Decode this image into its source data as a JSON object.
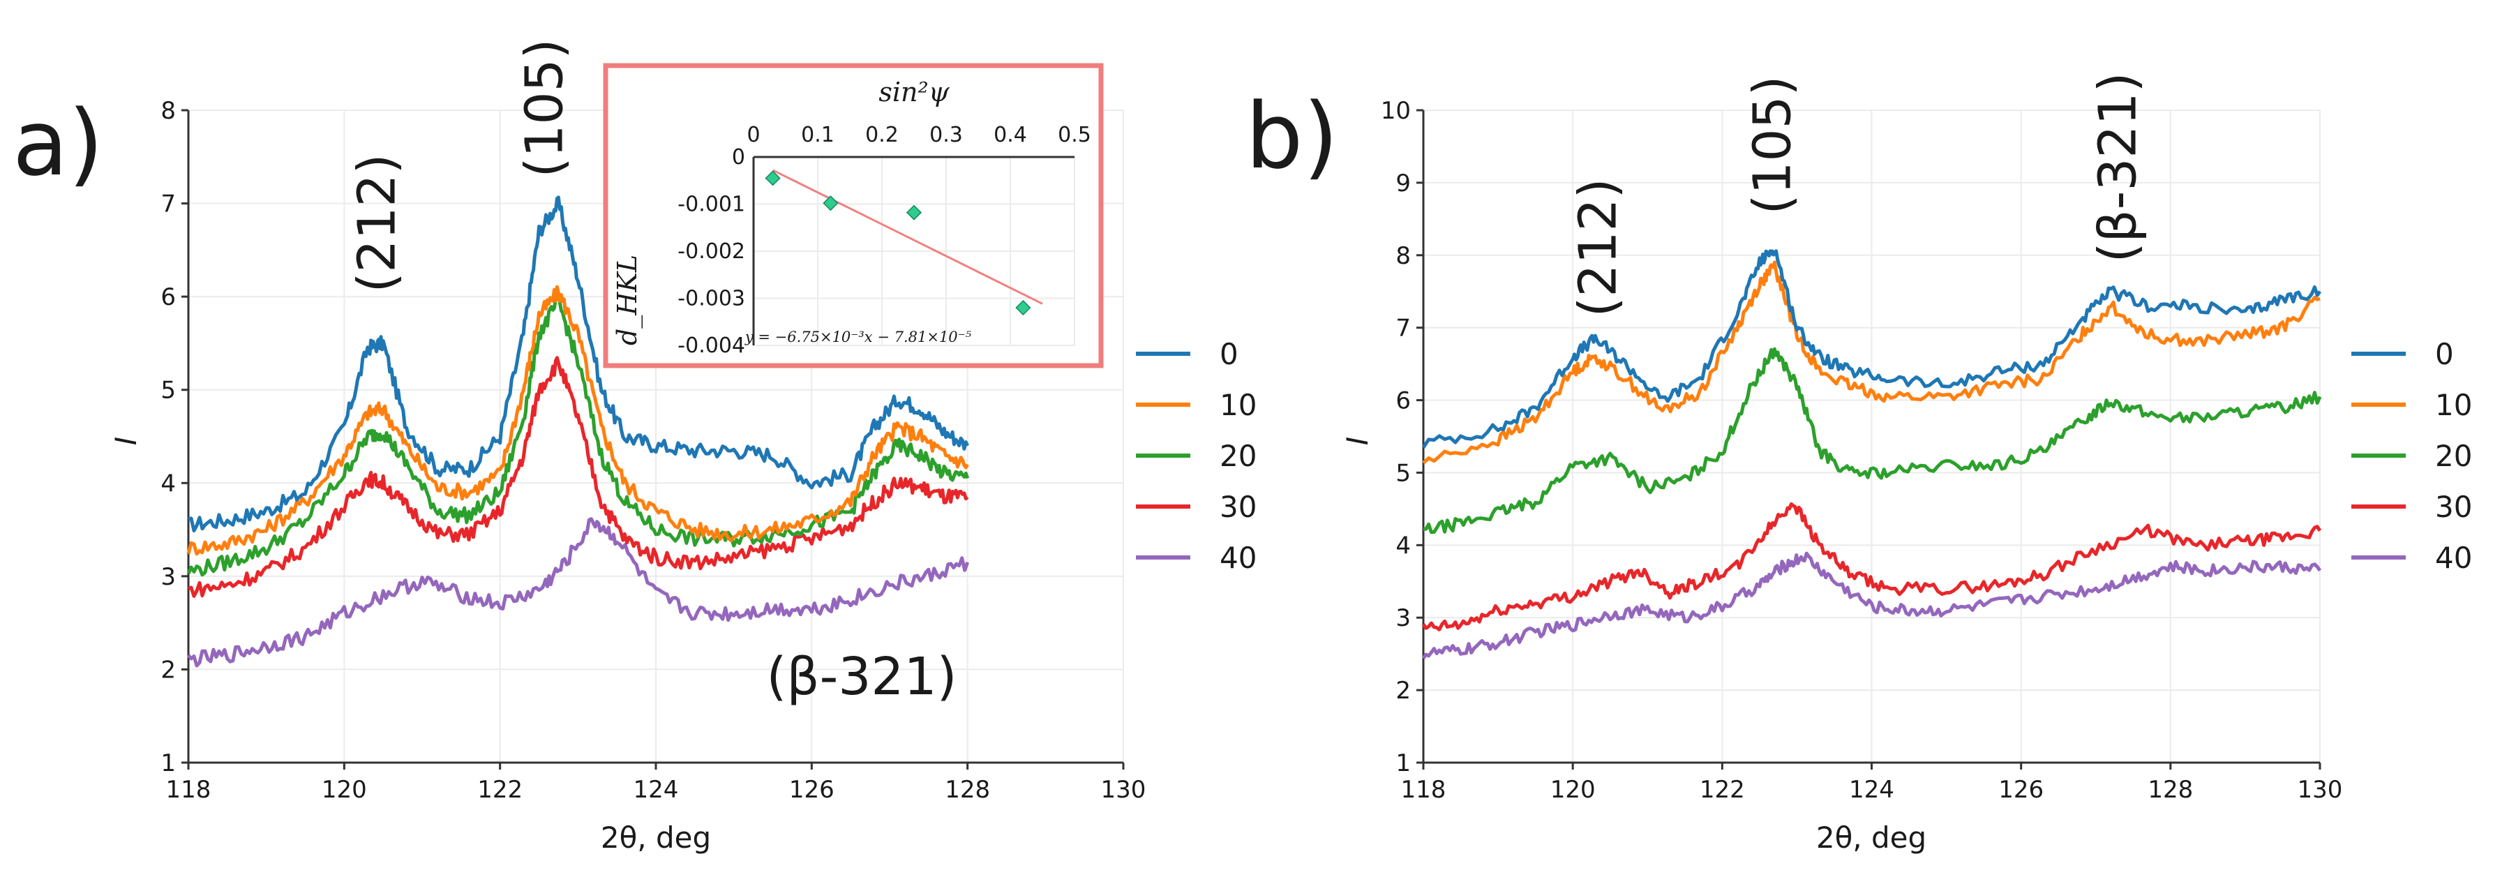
{
  "colors": {
    "s0": "#1f77b4",
    "s10": "#ff7f0e",
    "s20": "#2ca02c",
    "s30": "#e8262a",
    "s40": "#9467bd",
    "inset_frame": "#f07d7d",
    "inset_line": "#f08080",
    "inset_marker": "#2ecc8f"
  },
  "legend_entries": [
    "0",
    "10",
    "20",
    "30",
    "40"
  ],
  "chart_data": [
    {
      "id": "a",
      "type": "line",
      "panel_label": "a)",
      "xlabel": "2θ, deg",
      "ylabel": "I",
      "xlim": [
        118,
        130
      ],
      "ylim": [
        1,
        8
      ],
      "xticks": [
        "118",
        "120",
        "122",
        "124",
        "126",
        "128",
        "130"
      ],
      "yticks": [
        "1",
        "2",
        "3",
        "4",
        "5",
        "6",
        "7",
        "8"
      ],
      "annotations": [
        "(212)",
        "(105)",
        "(β-321)"
      ],
      "series": [
        {
          "name": "0",
          "x": [
            118,
            118.5,
            119,
            119.5,
            120,
            120.3,
            120.5,
            120.8,
            121.2,
            121.6,
            122,
            122.3,
            122.5,
            122.75,
            123,
            123.3,
            123.6,
            124,
            124.5,
            125,
            125.5,
            126,
            126.5,
            126.8,
            127.1,
            127.4,
            127.7,
            128
          ],
          "y": [
            3.55,
            3.6,
            3.7,
            3.9,
            4.6,
            5.45,
            5.5,
            4.6,
            4.15,
            4.15,
            4.5,
            5.6,
            6.7,
            7.0,
            6.2,
            5.0,
            4.5,
            4.4,
            4.35,
            4.35,
            4.3,
            4.0,
            4.1,
            4.6,
            4.9,
            4.8,
            4.55,
            4.4
          ]
        },
        {
          "name": "10",
          "x": [
            118,
            118.5,
            119,
            119.5,
            120,
            120.3,
            120.5,
            120.8,
            121.2,
            121.6,
            122,
            122.3,
            122.5,
            122.75,
            123,
            123.3,
            123.6,
            124,
            124.5,
            125,
            125.5,
            126,
            126.5,
            126.8,
            127.1,
            127.4,
            127.7,
            128
          ],
          "y": [
            3.3,
            3.35,
            3.5,
            3.8,
            4.3,
            4.75,
            4.8,
            4.4,
            3.95,
            3.9,
            4.1,
            5.0,
            5.8,
            6.05,
            5.6,
            4.6,
            4.0,
            3.7,
            3.5,
            3.45,
            3.5,
            3.6,
            3.8,
            4.3,
            4.6,
            4.5,
            4.3,
            4.2
          ]
        },
        {
          "name": "20",
          "x": [
            118,
            118.5,
            119,
            119.5,
            120,
            120.3,
            120.5,
            120.8,
            121.2,
            121.6,
            122,
            122.3,
            122.5,
            122.75,
            123,
            123.3,
            123.6,
            124,
            124.5,
            125,
            125.5,
            126,
            126.5,
            126.8,
            127.1,
            127.4,
            127.7,
            128
          ],
          "y": [
            3.05,
            3.15,
            3.3,
            3.6,
            4.1,
            4.5,
            4.55,
            4.2,
            3.7,
            3.65,
            3.9,
            4.7,
            5.6,
            5.95,
            5.3,
            4.3,
            3.8,
            3.5,
            3.4,
            3.4,
            3.45,
            3.55,
            3.7,
            4.1,
            4.4,
            4.3,
            4.1,
            4.05
          ]
        },
        {
          "name": "30",
          "x": [
            118,
            118.5,
            119,
            119.5,
            120,
            120.3,
            120.5,
            120.8,
            121.2,
            121.6,
            122,
            122.3,
            122.5,
            122.75,
            123,
            123.3,
            123.6,
            124,
            124.5,
            125,
            125.5,
            126,
            126.5,
            126.8,
            127.1,
            127.4,
            127.7,
            128
          ],
          "y": [
            2.85,
            2.9,
            3.05,
            3.3,
            3.75,
            4.05,
            4.0,
            3.75,
            3.45,
            3.45,
            3.7,
            4.3,
            5.0,
            5.3,
            4.7,
            3.8,
            3.4,
            3.2,
            3.15,
            3.2,
            3.3,
            3.4,
            3.55,
            3.8,
            4.0,
            3.95,
            3.85,
            3.85
          ]
        },
        {
          "name": "40",
          "x": [
            118,
            118.5,
            119,
            119.5,
            120,
            120.5,
            121,
            121.5,
            122,
            122.5,
            122.8,
            123.2,
            123.5,
            124,
            124.5,
            125,
            125.5,
            126,
            126.5,
            127,
            127.5,
            128
          ],
          "y": [
            2.1,
            2.15,
            2.25,
            2.35,
            2.6,
            2.8,
            2.95,
            2.8,
            2.7,
            2.85,
            3.1,
            3.6,
            3.4,
            2.8,
            2.6,
            2.6,
            2.65,
            2.65,
            2.75,
            2.9,
            3.0,
            3.15
          ]
        }
      ]
    },
    {
      "id": "b",
      "type": "line",
      "panel_label": "b)",
      "xlabel": "2θ, deg",
      "ylabel": "I",
      "xlim": [
        118,
        130
      ],
      "ylim": [
        1,
        10
      ],
      "xticks": [
        "118",
        "120",
        "122",
        "124",
        "126",
        "128",
        "130"
      ],
      "yticks": [
        "1",
        "2",
        "3",
        "4",
        "5",
        "6",
        "7",
        "8",
        "9",
        "10"
      ],
      "annotations": [
        "(212)",
        "(105)",
        "(β-321)"
      ],
      "series": [
        {
          "name": "0",
          "x": [
            118,
            119,
            119.5,
            120,
            120.3,
            120.7,
            121.2,
            121.7,
            122.2,
            122.5,
            122.7,
            123,
            123.3,
            123.7,
            124.2,
            125,
            125.7,
            126.3,
            126.8,
            127.2,
            127.7,
            128.3,
            129,
            129.5,
            130
          ],
          "y": [
            5.4,
            5.6,
            5.9,
            6.6,
            6.85,
            6.5,
            6.0,
            6.3,
            7.2,
            7.9,
            8.1,
            7.0,
            6.6,
            6.4,
            6.3,
            6.2,
            6.4,
            6.5,
            7.1,
            7.5,
            7.3,
            7.3,
            7.2,
            7.4,
            7.5
          ]
        },
        {
          "name": "10",
          "x": [
            118,
            119,
            119.5,
            120,
            120.3,
            120.7,
            121.2,
            121.7,
            122.2,
            122.5,
            122.7,
            123,
            123.3,
            123.7,
            124.2,
            125,
            125.7,
            126.3,
            126.8,
            127.2,
            127.7,
            128.3,
            129,
            129.5,
            130
          ],
          "y": [
            5.15,
            5.45,
            5.75,
            6.4,
            6.6,
            6.3,
            5.85,
            6.1,
            7.0,
            7.6,
            7.85,
            6.9,
            6.4,
            6.2,
            6.05,
            6.05,
            6.2,
            6.3,
            6.9,
            7.3,
            6.9,
            6.8,
            6.9,
            7.0,
            7.4
          ]
        },
        {
          "name": "20",
          "x": [
            118,
            118.5,
            119,
            119.5,
            120,
            120.5,
            121,
            121.5,
            122,
            122.4,
            122.7,
            123,
            123.3,
            123.7,
            124.2,
            125,
            125.7,
            126.3,
            126.8,
            127.2,
            127.7,
            128.3,
            129,
            129.5,
            130
          ],
          "y": [
            4.2,
            4.3,
            4.45,
            4.6,
            5.1,
            5.2,
            4.8,
            4.9,
            5.3,
            6.2,
            6.7,
            6.2,
            5.3,
            5.0,
            5.0,
            5.1,
            5.1,
            5.3,
            5.7,
            6.0,
            5.8,
            5.75,
            5.85,
            5.9,
            6.05
          ]
        },
        {
          "name": "30",
          "x": [
            118,
            118.5,
            119,
            119.5,
            120,
            120.5,
            120.9,
            121.3,
            121.7,
            122.2,
            122.6,
            122.95,
            123.3,
            123.7,
            124.2,
            125,
            125.7,
            126.3,
            127,
            127.7,
            128.3,
            129,
            129.5,
            130
          ],
          "y": [
            2.85,
            2.9,
            3.1,
            3.2,
            3.3,
            3.5,
            3.65,
            3.35,
            3.5,
            3.7,
            4.2,
            4.6,
            4.0,
            3.6,
            3.4,
            3.4,
            3.45,
            3.6,
            3.95,
            4.2,
            4.0,
            4.05,
            4.1,
            4.2
          ]
        },
        {
          "name": "40",
          "x": [
            118,
            118.5,
            119,
            119.5,
            120,
            120.5,
            121,
            121.5,
            122,
            122.5,
            122.8,
            123.1,
            123.5,
            124,
            124.5,
            125,
            125.7,
            126.3,
            127,
            127.5,
            128,
            128.5,
            129,
            129.5,
            130
          ],
          "y": [
            2.5,
            2.55,
            2.65,
            2.8,
            2.9,
            3.05,
            3.1,
            3.0,
            3.15,
            3.45,
            3.7,
            3.85,
            3.5,
            3.15,
            3.1,
            3.1,
            3.2,
            3.3,
            3.4,
            3.55,
            3.7,
            3.65,
            3.7,
            3.7,
            3.65
          ]
        }
      ]
    },
    {
      "id": "inset",
      "type": "scatter",
      "xlabel": "sin²ψ",
      "ylabel": "d_HKL",
      "xlim": [
        0,
        0.5
      ],
      "ylim": [
        -0.004,
        0
      ],
      "xticks": [
        "0",
        "0.1",
        "0.2",
        "0.3",
        "0.4",
        "0.5"
      ],
      "yticks": [
        "0",
        "-0.001",
        "-0.002",
        "-0.003",
        "-0.004"
      ],
      "points": [
        {
          "x": 0.03,
          "y": -0.00045
        },
        {
          "x": 0.12,
          "y": -0.00098
        },
        {
          "x": 0.25,
          "y": -0.00118
        },
        {
          "x": 0.42,
          "y": -0.0032
        }
      ],
      "fit": {
        "slope": -0.00675,
        "intercept": -7.81e-05
      },
      "equation": "y = −6.75×10⁻³x − 7.81×10⁻⁵"
    }
  ]
}
